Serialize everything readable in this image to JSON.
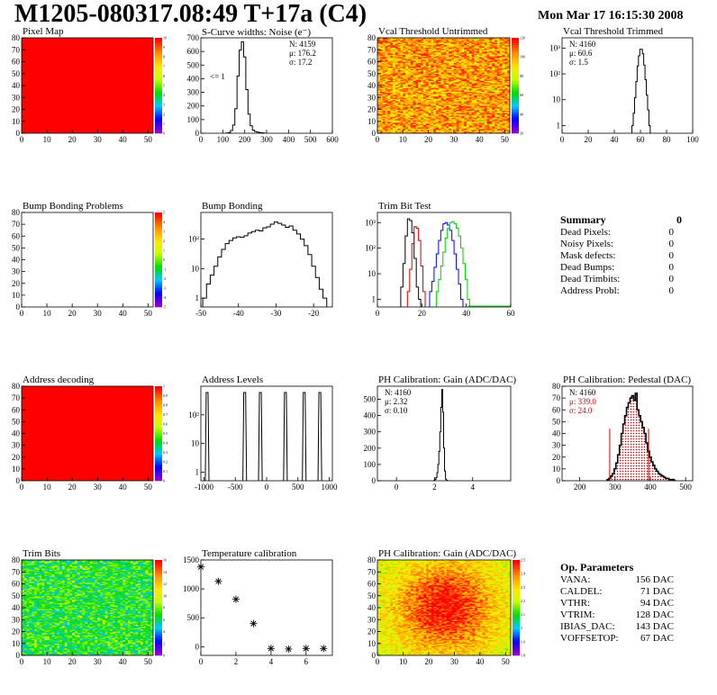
{
  "header": {
    "title": "M1205-080317.08:49 T+17a (C4)",
    "datetime": "Mon Mar 17 16:15:30 2008"
  },
  "summary": {
    "title": "Summary",
    "value": "0",
    "rows": [
      {
        "label": "Dead Pixels:",
        "value": "0"
      },
      {
        "label": "Noisy Pixels:",
        "value": "0"
      },
      {
        "label": "Mask defects:",
        "value": "0"
      },
      {
        "label": "Dead Bumps:",
        "value": "0"
      },
      {
        "label": "Dead Trimbits:",
        "value": "0"
      },
      {
        "label": "Address Probl:",
        "value": "0"
      }
    ]
  },
  "op_params": {
    "title": "Op. Parameters",
    "rows": [
      {
        "label": "VANA:",
        "value": "156 DAC"
      },
      {
        "label": "CALDEL:",
        "value": "71 DAC"
      },
      {
        "label": "VTHR:",
        "value": "94 DAC"
      },
      {
        "label": "VTRIM:",
        "value": "128 DAC"
      },
      {
        "label": "IBIAS_DAC:",
        "value": "143 DAC"
      },
      {
        "label": "VOFFSETOP:",
        "value": "67 DAC"
      }
    ]
  },
  "colors": {
    "map_red": "#ff0000",
    "trim_blue": "#0000ff",
    "trim_green": "#00cc00",
    "trim_red": "#cc0000",
    "pedestal_red": "#cc0000"
  },
  "chart_data": [
    {
      "id": "pixel-map",
      "type": "heatmap",
      "title": "Pixel Map",
      "pattern": "uniform",
      "xlim": [
        0,
        52
      ],
      "ylim": [
        0,
        80
      ],
      "xticks": [
        0,
        10,
        20,
        30,
        40,
        50
      ],
      "yticks": [
        0,
        10,
        20,
        30,
        40,
        50,
        60,
        70,
        80
      ],
      "zlim": [
        0,
        10
      ],
      "palette_labels": [
        "0",
        "1",
        "2",
        "3",
        "4",
        "5",
        "6",
        "7",
        "8",
        "9",
        "10"
      ]
    },
    {
      "id": "noise",
      "type": "bar",
      "title": "S-Curve widths: Noise (e⁻)",
      "xlim": [
        0,
        600
      ],
      "ylim": [
        0,
        700
      ],
      "xticks": [
        0,
        100,
        200,
        300,
        400,
        500,
        600
      ],
      "yticks": [
        0,
        100,
        200,
        300,
        400,
        500,
        600,
        700
      ],
      "xticklabels": [
        "0",
        "100",
        "200",
        "300",
        "400",
        "500",
        "600"
      ],
      "yticklabels": [
        "0",
        "100",
        "200",
        "300",
        "400",
        "500",
        "600",
        "700"
      ],
      "binwidth": 10,
      "x": [
        120,
        130,
        140,
        150,
        160,
        170,
        180,
        190,
        200,
        210,
        220,
        230,
        240,
        250,
        260,
        270,
        280,
        290
      ],
      "values": [
        2,
        5,
        20,
        60,
        180,
        420,
        610,
        670,
        560,
        320,
        140,
        55,
        22,
        12,
        8,
        5,
        3,
        1
      ],
      "stats": [
        "N: 4159",
        "μ: 176.2",
        "σ: 17.2"
      ],
      "annotation": "<= 1"
    },
    {
      "id": "vcal-untrimmed",
      "type": "heatmap",
      "title": "Vcal Threshold Untrimmed",
      "pattern": "untrimmed",
      "xlim": [
        0,
        52
      ],
      "ylim": [
        0,
        80
      ],
      "xticks": [
        0,
        10,
        20,
        30,
        40,
        50
      ],
      "yticks": [
        0,
        10,
        20,
        30,
        40,
        50,
        60,
        70,
        80
      ],
      "palette_labels": [
        "20",
        "40",
        "60",
        "80",
        "100",
        "120"
      ]
    },
    {
      "id": "vcal-trimmed",
      "type": "bar",
      "title": "Vcal Threshold Trimmed",
      "log": true,
      "xlim": [
        0,
        100
      ],
      "ylim": [
        0.5,
        2500
      ],
      "xticks": [
        0,
        20,
        40,
        60,
        80,
        100
      ],
      "xticklabels": [
        "0",
        "20",
        "40",
        "60",
        "80",
        "100"
      ],
      "yticks": [
        1,
        10,
        100,
        1000
      ],
      "yticklabels": [
        "1",
        "10",
        "10²",
        "10³"
      ],
      "binwidth": 1,
      "x": [
        54,
        55,
        56,
        57,
        58,
        59,
        60,
        61,
        62,
        63,
        64,
        65,
        66,
        67
      ],
      "values": [
        1,
        3,
        12,
        50,
        200,
        500,
        900,
        900,
        600,
        220,
        60,
        15,
        4,
        1
      ],
      "stats": [
        "N: 4160",
        "μ: 60.6",
        "σ:  1.5"
      ]
    },
    {
      "id": "bump-problems",
      "type": "heatmap",
      "title": "Bump Bonding Problems",
      "pattern": "empty",
      "xlim": [
        0,
        52
      ],
      "ylim": [
        0,
        80
      ],
      "xticks": [
        0,
        10,
        20,
        30,
        40,
        50
      ],
      "yticks": [
        0,
        10,
        20,
        30,
        40,
        50,
        60,
        70,
        80
      ],
      "palette_labels": [
        "-5",
        "-4",
        "-3",
        "-2",
        "-1",
        "0",
        "1",
        "2",
        "3",
        "4",
        "5"
      ]
    },
    {
      "id": "bump-bonding",
      "type": "bar",
      "title": "Bump Bonding",
      "log": true,
      "xlim": [
        -50,
        -15
      ],
      "ylim": [
        0.5,
        800
      ],
      "xticks": [
        -50,
        -40,
        -30,
        -20
      ],
      "xticklabels": [
        "-50",
        "-40",
        "-30",
        "-20"
      ],
      "yticks": [
        1,
        10,
        100
      ],
      "yticklabels": [
        "1",
        "10",
        "10²"
      ],
      "binwidth": 1,
      "x": [
        -49,
        -48,
        -47,
        -46,
        -45,
        -44,
        -43,
        -42,
        -41,
        -40,
        -39,
        -38,
        -37,
        -36,
        -35,
        -34,
        -33,
        -32,
        -31,
        -30,
        -29,
        -28,
        -27,
        -26,
        -25,
        -24,
        -23,
        -22,
        -21,
        -20,
        -19,
        -18,
        -17
      ],
      "values": [
        1,
        3,
        6,
        12,
        25,
        45,
        70,
        90,
        110,
        120,
        115,
        130,
        160,
        180,
        200,
        190,
        240,
        260,
        320,
        380,
        340,
        300,
        250,
        280,
        200,
        150,
        100,
        60,
        30,
        12,
        5,
        2,
        1
      ]
    },
    {
      "id": "trim-bit-test",
      "type": "line",
      "title": "Trim Bit Test",
      "log": true,
      "xlim": [
        0,
        60
      ],
      "ylim": [
        0.5,
        2500
      ],
      "xticks": [
        0,
        20,
        40,
        60
      ],
      "xticklabels": [
        "0",
        "20",
        "40",
        "60"
      ],
      "yticks": [
        1,
        10,
        100,
        1000
      ],
      "yticklabels": [
        "1",
        "10",
        "10²",
        "10³"
      ],
      "series": [
        {
          "color": "#000000",
          "x": [
            11,
            12,
            13,
            14,
            15,
            16,
            17,
            18,
            19
          ],
          "values": [
            3,
            25,
            300,
            1400,
            1200,
            400,
            40,
            3,
            1
          ]
        },
        {
          "color": "#cc0000",
          "x": [
            14,
            15,
            16,
            17,
            18,
            19,
            20,
            21
          ],
          "values": [
            2,
            15,
            150,
            700,
            600,
            200,
            20,
            2
          ]
        },
        {
          "color": "#0000ff",
          "x": [
            24,
            25,
            26,
            27,
            28,
            29,
            30,
            31,
            32,
            33,
            34,
            35,
            36,
            37,
            38
          ],
          "values": [
            2,
            5,
            18,
            60,
            200,
            500,
            900,
            1000,
            800,
            500,
            200,
            60,
            15,
            4,
            1
          ]
        },
        {
          "color": "#00cc00",
          "x": [
            27,
            28,
            29,
            30,
            31,
            32,
            33,
            34,
            35,
            36,
            37,
            38,
            39,
            40,
            41
          ],
          "values": [
            2,
            6,
            20,
            70,
            250,
            600,
            1000,
            1100,
            900,
            600,
            300,
            100,
            25,
            6,
            1
          ]
        }
      ]
    },
    {
      "id": "address-decoding",
      "type": "heatmap",
      "title": "Address decoding",
      "pattern": "uniform",
      "xlim": [
        0,
        52
      ],
      "ylim": [
        0,
        80
      ],
      "xticks": [
        0,
        10,
        20,
        30,
        40,
        50
      ],
      "yticks": [
        0,
        10,
        20,
        30,
        40,
        50,
        60,
        70,
        80
      ],
      "palette_labels": [
        "0",
        "0.1",
        "0.2",
        "0.3",
        "0.4",
        "0.5",
        "0.6",
        "0.7",
        "0.8",
        "0.9",
        "1"
      ]
    },
    {
      "id": "address-levels",
      "type": "bar",
      "title": "Address Levels",
      "log": true,
      "xlim": [
        -1050,
        1050
      ],
      "ylim": [
        0.5,
        1000
      ],
      "xticks": [
        -1000,
        -500,
        0,
        500,
        1000
      ],
      "xticklabels": [
        "-1000",
        "-500",
        "0",
        "500",
        "1000"
      ],
      "yticks": [
        1,
        10,
        100
      ],
      "yticklabels": [
        "1",
        "10",
        "10²"
      ],
      "peaks": [
        -950,
        -350,
        -100,
        300,
        600,
        850
      ],
      "peak_value": 600
    },
    {
      "id": "ph-gain",
      "type": "bar",
      "title": "PH Calibration: Gain (ADC/DAC)",
      "xlim": [
        -1,
        6
      ],
      "ylim": [
        0,
        580
      ],
      "xticks": [
        0,
        2,
        4
      ],
      "xticklabels": [
        "0",
        "2",
        "4"
      ],
      "yticks": [
        0,
        100,
        200,
        300,
        400,
        500
      ],
      "yticklabels": [
        "0",
        "100",
        "200",
        "300",
        "400",
        "500"
      ],
      "binwidth": 0.05,
      "x": [
        2.0,
        2.05,
        2.1,
        2.15,
        2.2,
        2.25,
        2.3,
        2.35,
        2.4,
        2.45,
        2.5,
        2.55,
        2.6,
        2.65
      ],
      "values": [
        3,
        8,
        20,
        50,
        100,
        180,
        300,
        450,
        560,
        420,
        200,
        60,
        10,
        2
      ],
      "stats": [
        "N: 4160",
        "μ: 2.32",
        "σ: 0.10"
      ]
    },
    {
      "id": "ph-pedestal",
      "type": "bar",
      "title": "PH Calibration: Pedestal (DAC)",
      "xlim": [
        150,
        520
      ],
      "ylim": [
        0,
        80
      ],
      "xticks": [
        200,
        300,
        400,
        500
      ],
      "xticklabels": [
        "200",
        "300",
        "400",
        "500"
      ],
      "yticks": [
        0,
        10,
        20,
        30,
        40,
        50,
        60,
        70,
        80
      ],
      "yticklabels": [
        "0",
        "10",
        "20",
        "30",
        "40",
        "50",
        "60",
        "70",
        "80"
      ],
      "binwidth": 5,
      "x": [
        280,
        285,
        290,
        295,
        300,
        305,
        310,
        315,
        320,
        325,
        330,
        335,
        340,
        345,
        350,
        355,
        360,
        365,
        370,
        375,
        380,
        385,
        390,
        395,
        400,
        405,
        410,
        415,
        420,
        425,
        430,
        435,
        440,
        445,
        450,
        455,
        460,
        465,
        470
      ],
      "values": [
        1,
        2,
        4,
        6,
        10,
        15,
        22,
        30,
        40,
        48,
        55,
        62,
        66,
        70,
        72,
        68,
        74,
        60,
        55,
        50,
        45,
        40,
        32,
        25,
        20,
        16,
        13,
        10,
        8,
        6,
        5,
        4,
        3,
        2,
        2,
        1,
        1,
        1,
        0
      ],
      "cut_lines": [
        285,
        395
      ],
      "stats_black": [
        "N: 4160"
      ],
      "stats_red": [
        "μ: 339.0",
        "σ: 24.0"
      ]
    },
    {
      "id": "trim-bits",
      "type": "heatmap",
      "title": "Trim Bits",
      "pattern": "trimbits",
      "xlim": [
        0,
        52
      ],
      "ylim": [
        0,
        80
      ],
      "xticks": [
        0,
        10,
        20,
        30,
        40,
        50
      ],
      "yticks": [
        0,
        10,
        20,
        30,
        40,
        50,
        60,
        70,
        80
      ],
      "palette_labels": [
        "0",
        "2",
        "4",
        "6",
        "8",
        "10",
        "12",
        "14",
        "16"
      ]
    },
    {
      "id": "temperature",
      "type": "scatter",
      "title": "Temperature calibration",
      "xlim": [
        0,
        7.5
      ],
      "ylim": [
        -150,
        1500
      ],
      "xticks": [
        0,
        2,
        4,
        6
      ],
      "xticklabels": [
        "0",
        "2",
        "4",
        "6"
      ],
      "yticks": [
        0,
        500,
        1000,
        1500
      ],
      "yticklabels": [
        "0",
        "500",
        "1000",
        "1500"
      ],
      "x": [
        0,
        1,
        2,
        3,
        4,
        5,
        6,
        7
      ],
      "values": [
        1380,
        1130,
        820,
        400,
        -30,
        -40,
        -30,
        -30
      ]
    },
    {
      "id": "ph-gain-map",
      "type": "heatmap",
      "title": "PH Calibration: Gain (ADC/DAC)",
      "pattern": "gainmap",
      "xlim": [
        0,
        52
      ],
      "ylim": [
        0,
        80
      ],
      "xticks": [
        0,
        10,
        20,
        30,
        40,
        50
      ],
      "yticks": [
        0,
        10,
        20,
        30,
        40,
        50,
        60,
        70,
        80
      ],
      "palette_labels": [
        "1.8",
        "1.9",
        "2",
        "2.1",
        "2.2",
        "2.3",
        "2.4",
        "2.5"
      ]
    }
  ]
}
